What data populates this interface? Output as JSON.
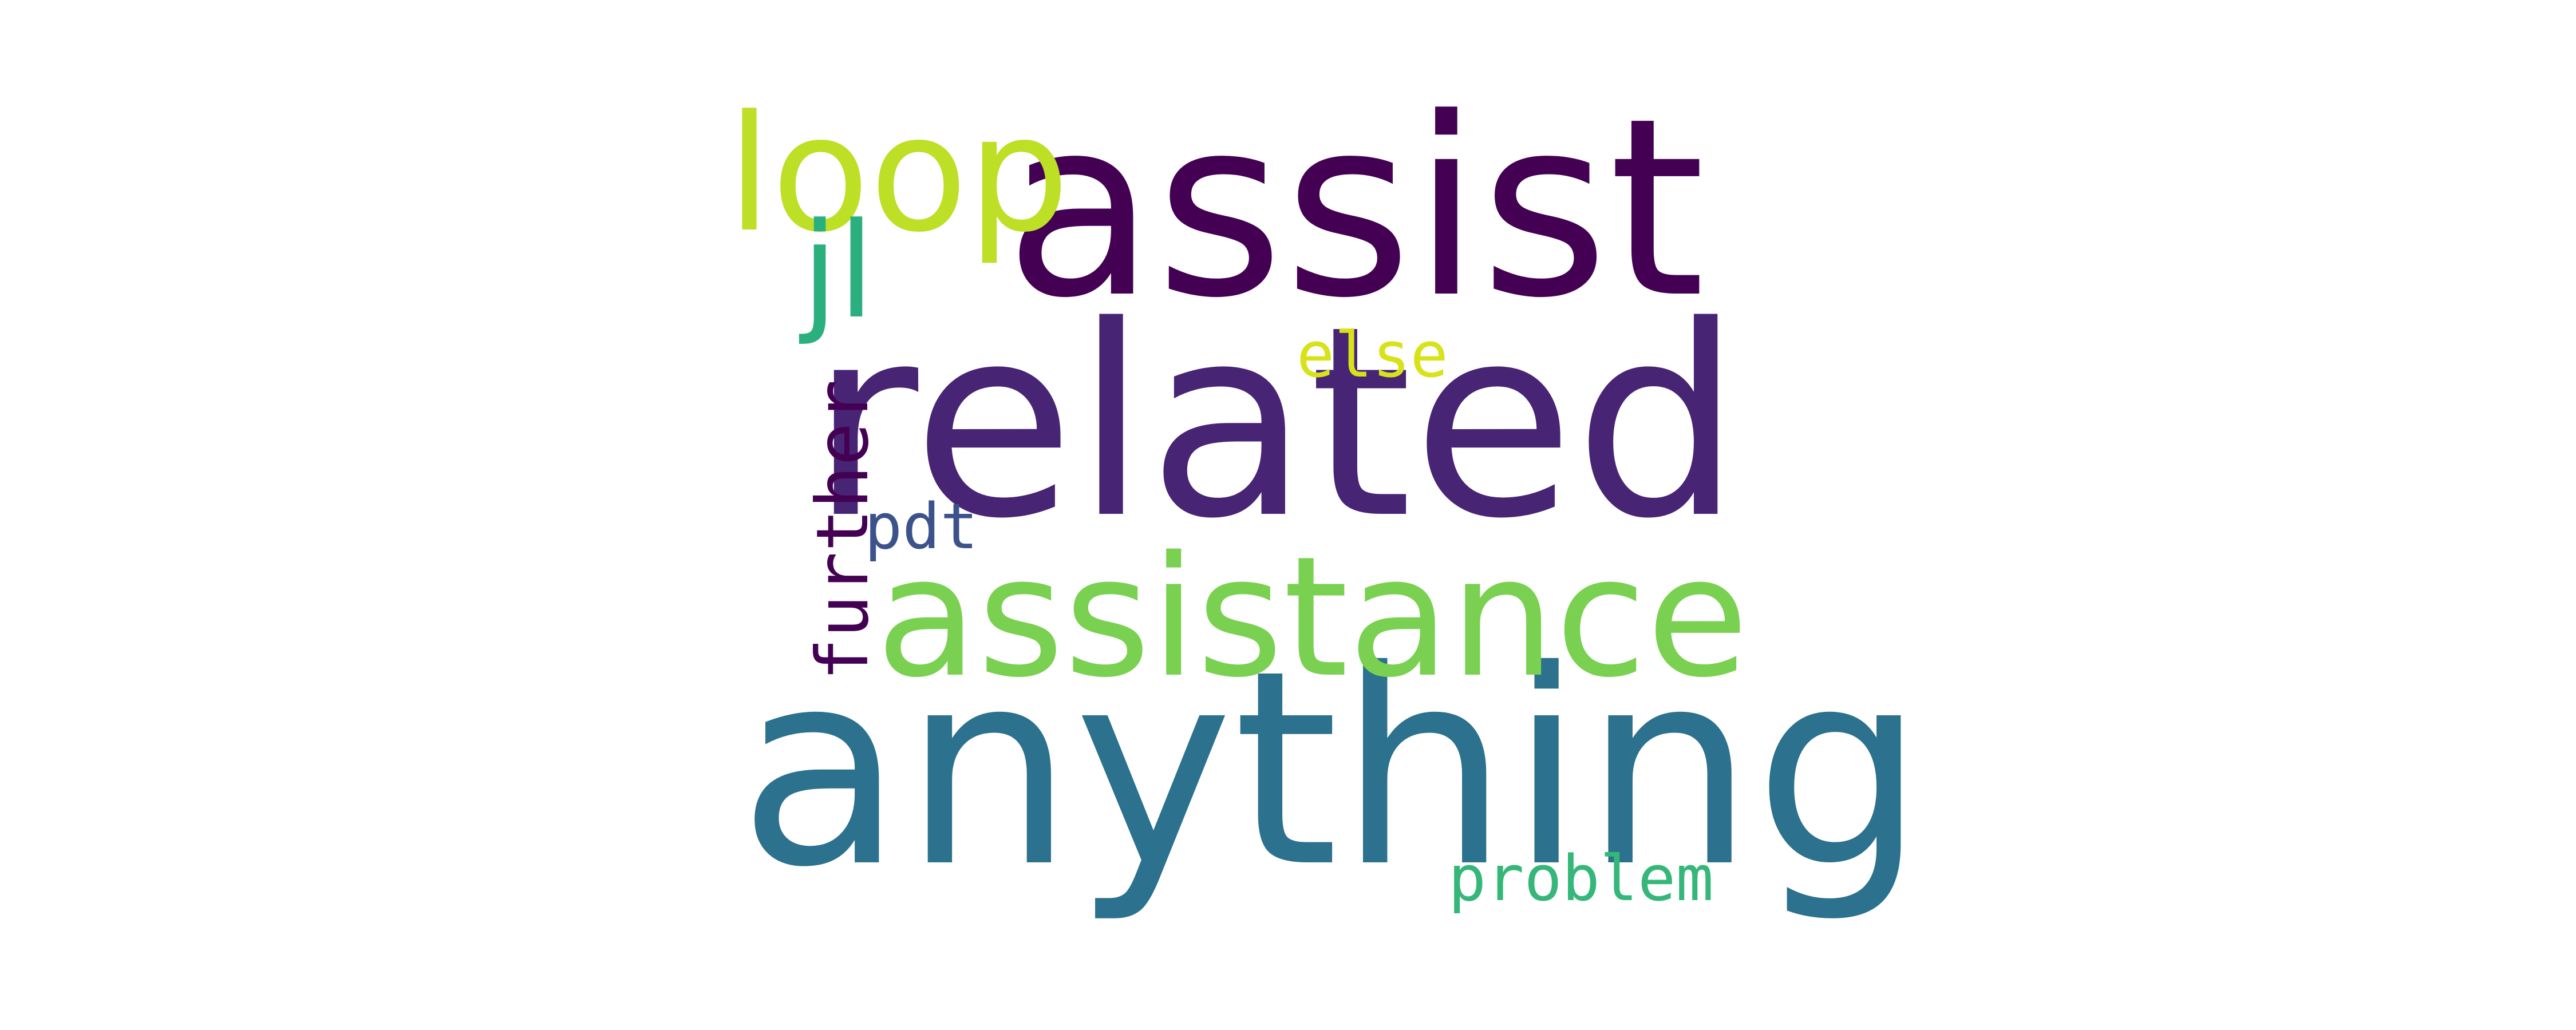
{
  "wordcloud": {
    "words": [
      {
        "text": "assist",
        "color": "#440154"
      },
      {
        "text": "related",
        "color": "#482475"
      },
      {
        "text": "anything",
        "color": "#2c718e"
      },
      {
        "text": "assistance",
        "color": "#7ad151"
      },
      {
        "text": "loop",
        "color": "#bddf26"
      },
      {
        "text": "jl",
        "color": "#2ab07f"
      },
      {
        "text": "else",
        "color": "#d8e219"
      },
      {
        "text": "further",
        "color": "#440154"
      },
      {
        "text": "pdt",
        "color": "#3b528b"
      },
      {
        "text": "problem",
        "color": "#35b779"
      }
    ]
  }
}
